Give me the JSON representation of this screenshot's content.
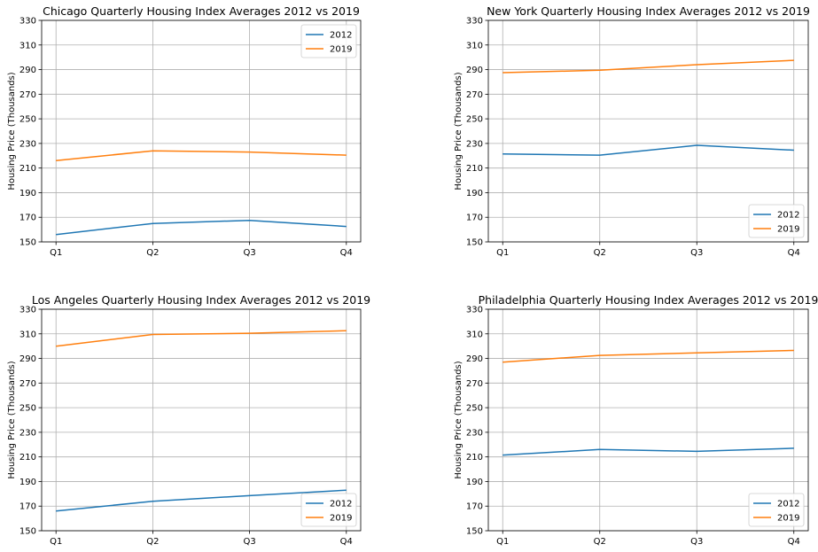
{
  "colors": {
    "series_2012": "#1f77b4",
    "series_2019": "#ff7f0e",
    "grid": "#b0b0b0"
  },
  "chart_data": [
    {
      "type": "line",
      "title": "Chicago Quarterly Housing Index Averages 2012 vs 2019",
      "xlabel": "",
      "ylabel": "Housing Price (Thousands)",
      "categories": [
        "Q1",
        "Q2",
        "Q3",
        "Q4"
      ],
      "ylim": [
        150,
        330
      ],
      "yticks": [
        150,
        170,
        190,
        210,
        230,
        250,
        270,
        290,
        310,
        330
      ],
      "grid": true,
      "legend": "upper right",
      "series": [
        {
          "name": "2012",
          "values": [
            156,
            165,
            167.5,
            162.5
          ]
        },
        {
          "name": "2019",
          "values": [
            216,
            224,
            223,
            220.5
          ]
        }
      ]
    },
    {
      "type": "line",
      "title": "New York Quarterly Housing Index Averages 2012 vs 2019",
      "xlabel": "",
      "ylabel": "Housing Price (Thousands)",
      "categories": [
        "Q1",
        "Q2",
        "Q3",
        "Q4"
      ],
      "ylim": [
        150,
        330
      ],
      "yticks": [
        150,
        170,
        190,
        210,
        230,
        250,
        270,
        290,
        310,
        330
      ],
      "grid": true,
      "legend": "lower right",
      "series": [
        {
          "name": "2012",
          "values": [
            221.5,
            220.5,
            228.5,
            224.5
          ]
        },
        {
          "name": "2019",
          "values": [
            287.5,
            289.5,
            294,
            297.5
          ]
        }
      ]
    },
    {
      "type": "line",
      "title": "Los Angeles Quarterly Housing Index Averages 2012 vs 2019",
      "xlabel": "",
      "ylabel": "Housing Price (Thousands)",
      "categories": [
        "Q1",
        "Q2",
        "Q3",
        "Q4"
      ],
      "ylim": [
        150,
        330
      ],
      "yticks": [
        150,
        170,
        190,
        210,
        230,
        250,
        270,
        290,
        310,
        330
      ],
      "grid": true,
      "legend": "lower right",
      "series": [
        {
          "name": "2012",
          "values": [
            166,
            174,
            178.5,
            183
          ]
        },
        {
          "name": "2019",
          "values": [
            300,
            309.5,
            310.5,
            312.5
          ]
        }
      ]
    },
    {
      "type": "line",
      "title": "Philadelphia Quarterly Housing Index Averages 2012 vs 2019",
      "xlabel": "",
      "ylabel": "Housing Price (Thousands)",
      "categories": [
        "Q1",
        "Q2",
        "Q3",
        "Q4"
      ],
      "ylim": [
        150,
        330
      ],
      "yticks": [
        150,
        170,
        190,
        210,
        230,
        250,
        270,
        290,
        310,
        330
      ],
      "grid": true,
      "legend": "lower right",
      "series": [
        {
          "name": "2012",
          "values": [
            211.5,
            216,
            214.5,
            217
          ]
        },
        {
          "name": "2019",
          "values": [
            287,
            292.5,
            294.5,
            296.5
          ]
        }
      ]
    }
  ]
}
